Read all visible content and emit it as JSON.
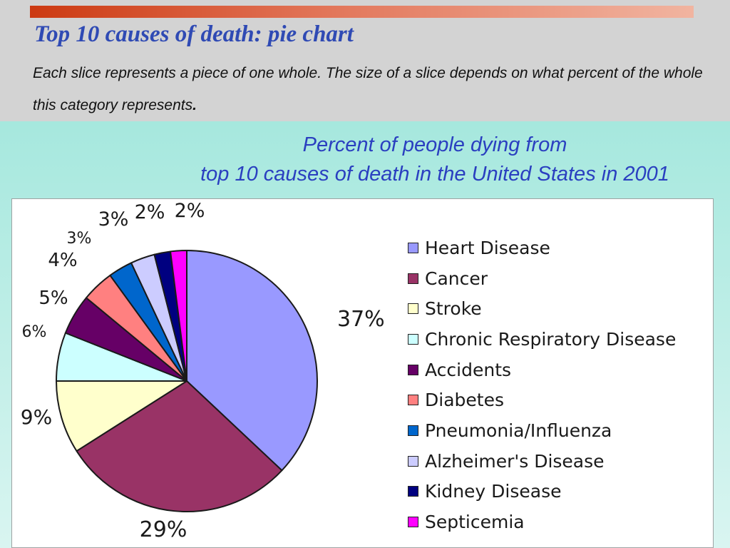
{
  "slide": {
    "title": "Top 10 causes of death: pie chart",
    "description": "Each slice represents a piece of one whole. The size of a slice depends on what percent of the whole this category represents",
    "description_end": "."
  },
  "chart_data": {
    "type": "pie",
    "title_lines": [
      "Percent of people dying from",
      "top 10 causes of death in the United States in 2001"
    ],
    "legend_position": "right",
    "slices": [
      {
        "name": "Heart Disease",
        "value": 37,
        "label": "37%",
        "color": "#9999ff"
      },
      {
        "name": "Cancer",
        "value": 29,
        "label": "29%",
        "color": "#993366"
      },
      {
        "name": "Stroke",
        "value": 9,
        "label": "9%",
        "color": "#ffffcc"
      },
      {
        "name": "Chronic Respiratory Disease",
        "value": 6,
        "label": "6%",
        "color": "#ccffff"
      },
      {
        "name": "Accidents",
        "value": 5,
        "label": "5%",
        "color": "#660066"
      },
      {
        "name": "Diabetes",
        "value": 4,
        "label": "4%",
        "color": "#ff8080"
      },
      {
        "name": "Pneumonia/Influenza",
        "value": 3,
        "label": "3%",
        "color": "#0066cc"
      },
      {
        "name": "Alzheimer's Disease",
        "value": 3,
        "label": "3%",
        "color": "#ccccff"
      },
      {
        "name": "Kidney Disease",
        "value": 2,
        "label": "2%",
        "color": "#000080"
      },
      {
        "name": "Septicemia",
        "value": 2,
        "label": "2%",
        "color": "#ff00ff"
      }
    ]
  }
}
